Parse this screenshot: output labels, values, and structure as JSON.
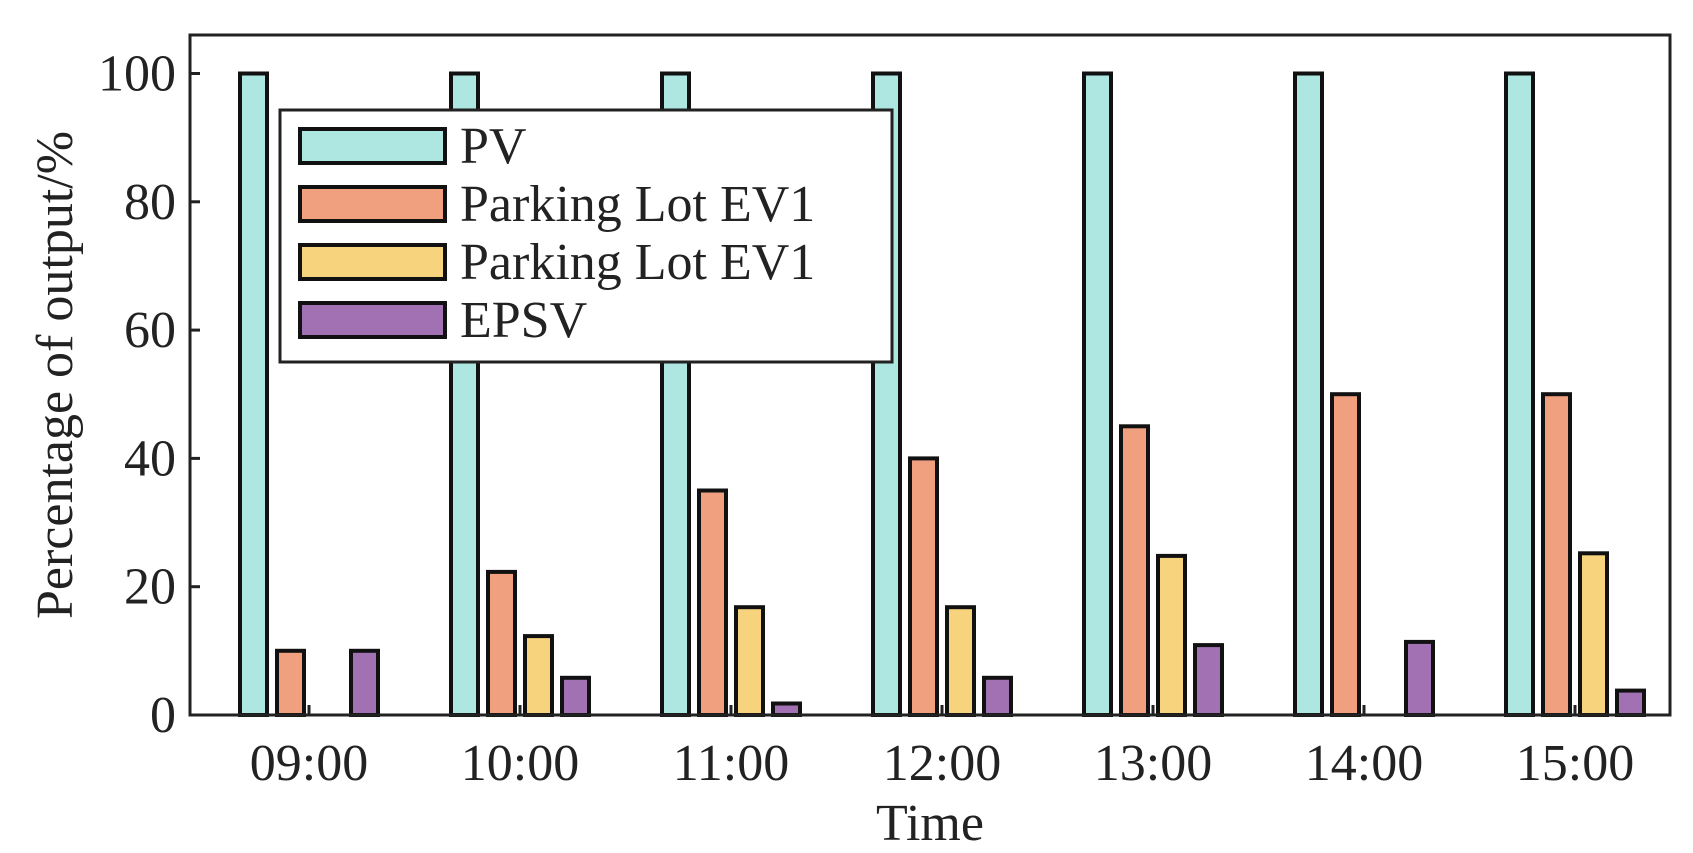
{
  "chart_data": {
    "type": "bar",
    "title": "",
    "xlabel": "Time",
    "ylabel": "Percentage of output/%",
    "ylim": [
      0,
      106
    ],
    "yticks": [
      0,
      20,
      40,
      60,
      80,
      100
    ],
    "categories": [
      "09:00",
      "10:00",
      "11:00",
      "12:00",
      "13:00",
      "14:00",
      "15:00"
    ],
    "series": [
      {
        "name": "PV",
        "color": "#AEE6E2",
        "values": [
          100,
          100,
          100,
          100,
          100,
          100,
          100
        ]
      },
      {
        "name": "Parking Lot EV1",
        "color": "#F0A07E",
        "values": [
          10,
          22.3,
          35,
          40,
          45,
          50,
          50
        ]
      },
      {
        "name": "Parking Lot EV1",
        "color": "#F8D37E",
        "values": [
          0,
          12.3,
          16.8,
          16.8,
          24.8,
          0,
          25.2
        ]
      },
      {
        "name": "EPSV",
        "color": "#A271B3",
        "values": [
          10,
          5.8,
          1.8,
          5.8,
          10.9,
          11.4,
          3.8
        ]
      }
    ],
    "legend_position": "top-left",
    "grid": false
  }
}
